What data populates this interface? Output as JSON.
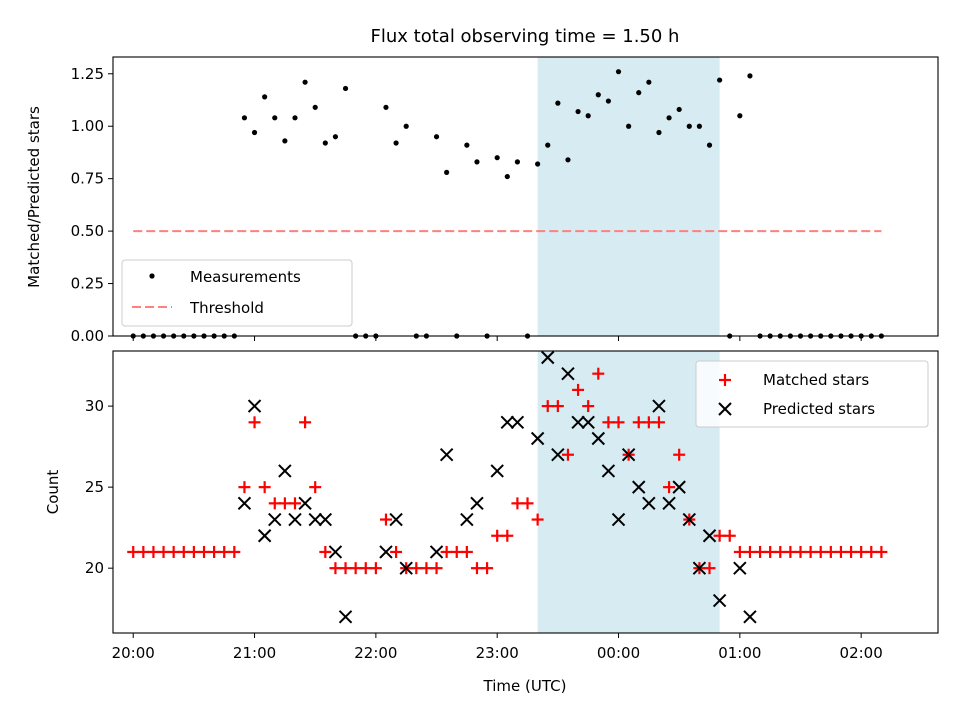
{
  "title": "Flux total observing time = 1.50 h",
  "xlabel": "Time (UTC)",
  "colors": {
    "measurement": "#000000",
    "threshold": "#ff8080",
    "matched": "#ff0000",
    "predicted": "#000000",
    "shade": "#add8e6"
  },
  "chart_data": [
    {
      "type": "scatter",
      "panel": "top",
      "ylabel": "Matched/Predicted stars",
      "ylim": [
        0,
        1.33
      ],
      "yticks": [
        0.0,
        0.25,
        0.5,
        0.75,
        1.0,
        1.25
      ],
      "ytick_labels": [
        "0.00",
        "0.25",
        "0.50",
        "0.75",
        "1.00",
        "1.25"
      ],
      "xlim": [
        "19:50",
        "02:38"
      ],
      "xticks": [
        "20:00",
        "21:00",
        "22:00",
        "23:00",
        "00:00",
        "01:00",
        "02:00"
      ],
      "shaded_interval": [
        "23:20",
        "00:50"
      ],
      "legend": {
        "placement": "lower-left",
        "entries": [
          "Measurements",
          "Threshold"
        ]
      },
      "threshold": {
        "name": "Threshold",
        "value": 0.5,
        "x_range": [
          "20:00",
          "02:10"
        ]
      },
      "series": [
        {
          "name": "Measurements",
          "points": [
            [
              "20:00",
              0
            ],
            [
              "20:05",
              0
            ],
            [
              "20:10",
              0
            ],
            [
              "20:15",
              0
            ],
            [
              "20:20",
              0
            ],
            [
              "20:25",
              0
            ],
            [
              "20:30",
              0
            ],
            [
              "20:35",
              0
            ],
            [
              "20:40",
              0
            ],
            [
              "20:45",
              0
            ],
            [
              "20:50",
              0
            ],
            [
              "20:55",
              1.04
            ],
            [
              "21:00",
              0.97
            ],
            [
              "21:05",
              1.14
            ],
            [
              "21:10",
              1.04
            ],
            [
              "21:15",
              0.93
            ],
            [
              "21:20",
              1.04
            ],
            [
              "21:25",
              1.21
            ],
            [
              "21:30",
              1.09
            ],
            [
              "21:35",
              0.92
            ],
            [
              "21:40",
              0.95
            ],
            [
              "21:45",
              1.18
            ],
            [
              "21:50",
              0
            ],
            [
              "21:55",
              0
            ],
            [
              "22:00",
              0
            ],
            [
              "22:05",
              1.09
            ],
            [
              "22:10",
              0.92
            ],
            [
              "22:15",
              1.0
            ],
            [
              "22:20",
              0
            ],
            [
              "22:25",
              0
            ],
            [
              "22:30",
              0.95
            ],
            [
              "22:35",
              0.78
            ],
            [
              "22:40",
              0
            ],
            [
              "22:45",
              0.91
            ],
            [
              "22:50",
              0.83
            ],
            [
              "22:55",
              0
            ],
            [
              "23:00",
              0.85
            ],
            [
              "23:05",
              0.76
            ],
            [
              "23:10",
              0.83
            ],
            [
              "23:15",
              0
            ],
            [
              "23:20",
              0.82
            ],
            [
              "23:25",
              0.91
            ],
            [
              "23:30",
              1.11
            ],
            [
              "23:35",
              0.84
            ],
            [
              "23:40",
              1.07
            ],
            [
              "23:45",
              1.05
            ],
            [
              "23:50",
              1.15
            ],
            [
              "23:55",
              1.12
            ],
            [
              "00:00",
              1.26
            ],
            [
              "00:05",
              1.0
            ],
            [
              "00:10",
              1.16
            ],
            [
              "00:15",
              1.21
            ],
            [
              "00:20",
              0.97
            ],
            [
              "00:25",
              1.04
            ],
            [
              "00:30",
              1.08
            ],
            [
              "00:35",
              1.0
            ],
            [
              "00:40",
              1.0
            ],
            [
              "00:45",
              0.91
            ],
            [
              "00:50",
              1.22
            ],
            [
              "00:55",
              0
            ],
            [
              "01:00",
              1.05
            ],
            [
              "01:05",
              1.24
            ],
            [
              "01:10",
              0
            ],
            [
              "01:15",
              0
            ],
            [
              "01:20",
              0
            ],
            [
              "01:25",
              0
            ],
            [
              "01:30",
              0
            ],
            [
              "01:35",
              0
            ],
            [
              "01:40",
              0
            ],
            [
              "01:45",
              0
            ],
            [
              "01:50",
              0
            ],
            [
              "01:55",
              0
            ],
            [
              "02:00",
              0
            ],
            [
              "02:05",
              0
            ],
            [
              "02:10",
              0
            ]
          ]
        }
      ]
    },
    {
      "type": "scatter",
      "panel": "bottom",
      "ylabel": "Count",
      "ylim": [
        16,
        33.4
      ],
      "yticks": [
        20,
        25,
        30
      ],
      "ytick_labels": [
        "20",
        "25",
        "30"
      ],
      "xlim": [
        "19:50",
        "02:38"
      ],
      "xticks": [
        "20:00",
        "21:00",
        "22:00",
        "23:00",
        "00:00",
        "01:00",
        "02:00"
      ],
      "xtick_labels": [
        "20:00",
        "21:00",
        "22:00",
        "23:00",
        "00:00",
        "01:00",
        "02:00"
      ],
      "shaded_interval": [
        "23:20",
        "00:50"
      ],
      "legend": {
        "placement": "upper-right",
        "entries": [
          "Matched stars",
          "Predicted stars"
        ]
      },
      "series": [
        {
          "name": "Matched stars",
          "marker": "plus",
          "points": [
            [
              "20:00",
              21
            ],
            [
              "20:05",
              21
            ],
            [
              "20:10",
              21
            ],
            [
              "20:15",
              21
            ],
            [
              "20:20",
              21
            ],
            [
              "20:25",
              21
            ],
            [
              "20:30",
              21
            ],
            [
              "20:35",
              21
            ],
            [
              "20:40",
              21
            ],
            [
              "20:45",
              21
            ],
            [
              "20:50",
              21
            ],
            [
              "20:55",
              25
            ],
            [
              "21:00",
              29
            ],
            [
              "21:05",
              25
            ],
            [
              "21:10",
              24
            ],
            [
              "21:15",
              24
            ],
            [
              "21:20",
              24
            ],
            [
              "21:25",
              29
            ],
            [
              "21:30",
              25
            ],
            [
              "21:35",
              21
            ],
            [
              "21:40",
              20
            ],
            [
              "21:45",
              20
            ],
            [
              "21:50",
              20
            ],
            [
              "21:55",
              20
            ],
            [
              "22:00",
              20
            ],
            [
              "22:05",
              23
            ],
            [
              "22:10",
              21
            ],
            [
              "22:15",
              20
            ],
            [
              "22:20",
              20
            ],
            [
              "22:25",
              20
            ],
            [
              "22:30",
              20
            ],
            [
              "22:35",
              21
            ],
            [
              "22:40",
              21
            ],
            [
              "22:45",
              21
            ],
            [
              "22:50",
              20
            ],
            [
              "22:55",
              20
            ],
            [
              "23:00",
              22
            ],
            [
              "23:05",
              22
            ],
            [
              "23:10",
              24
            ],
            [
              "23:15",
              24
            ],
            [
              "23:20",
              23
            ],
            [
              "23:25",
              30
            ],
            [
              "23:30",
              30
            ],
            [
              "23:35",
              27
            ],
            [
              "23:40",
              31
            ],
            [
              "23:45",
              30
            ],
            [
              "23:50",
              32
            ],
            [
              "23:55",
              29
            ],
            [
              "00:00",
              29
            ],
            [
              "00:05",
              27
            ],
            [
              "00:10",
              29
            ],
            [
              "00:15",
              29
            ],
            [
              "00:20",
              29
            ],
            [
              "00:25",
              25
            ],
            [
              "00:30",
              27
            ],
            [
              "00:35",
              23
            ],
            [
              "00:40",
              20
            ],
            [
              "00:45",
              20
            ],
            [
              "00:50",
              22
            ],
            [
              "00:55",
              22
            ],
            [
              "01:00",
              21
            ],
            [
              "01:05",
              21
            ],
            [
              "01:10",
              21
            ],
            [
              "01:15",
              21
            ],
            [
              "01:20",
              21
            ],
            [
              "01:25",
              21
            ],
            [
              "01:30",
              21
            ],
            [
              "01:35",
              21
            ],
            [
              "01:40",
              21
            ],
            [
              "01:45",
              21
            ],
            [
              "01:50",
              21
            ],
            [
              "01:55",
              21
            ],
            [
              "02:00",
              21
            ],
            [
              "02:05",
              21
            ],
            [
              "02:10",
              21
            ]
          ]
        },
        {
          "name": "Predicted stars",
          "marker": "x",
          "points": [
            [
              "20:55",
              24
            ],
            [
              "21:00",
              30
            ],
            [
              "21:05",
              22
            ],
            [
              "21:10",
              23
            ],
            [
              "21:15",
              26
            ],
            [
              "21:20",
              23
            ],
            [
              "21:25",
              24
            ],
            [
              "21:30",
              23
            ],
            [
              "21:35",
              23
            ],
            [
              "21:40",
              21
            ],
            [
              "21:45",
              17
            ],
            [
              "22:05",
              21
            ],
            [
              "22:10",
              23
            ],
            [
              "22:15",
              20
            ],
            [
              "22:30",
              21
            ],
            [
              "22:35",
              27
            ],
            [
              "22:45",
              23
            ],
            [
              "22:50",
              24
            ],
            [
              "23:00",
              26
            ],
            [
              "23:05",
              29
            ],
            [
              "23:10",
              29
            ],
            [
              "23:20",
              28
            ],
            [
              "23:25",
              33
            ],
            [
              "23:30",
              27
            ],
            [
              "23:35",
              32
            ],
            [
              "23:40",
              29
            ],
            [
              "23:45",
              29
            ],
            [
              "23:50",
              28
            ],
            [
              "23:55",
              26
            ],
            [
              "00:00",
              23
            ],
            [
              "00:05",
              27
            ],
            [
              "00:10",
              25
            ],
            [
              "00:15",
              24
            ],
            [
              "00:20",
              30
            ],
            [
              "00:25",
              24
            ],
            [
              "00:30",
              25
            ],
            [
              "00:35",
              23
            ],
            [
              "00:40",
              20
            ],
            [
              "00:45",
              22
            ],
            [
              "00:50",
              18
            ],
            [
              "01:00",
              20
            ],
            [
              "01:05",
              17
            ]
          ]
        }
      ]
    }
  ]
}
